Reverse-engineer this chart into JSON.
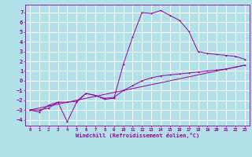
{
  "xlabel": "Windchill (Refroidissement éolien,°C)",
  "bg_color": "#b2e0e8",
  "grid_color": "#ffffff",
  "line_color": "#990099",
  "xlim": [
    -0.5,
    23.5
  ],
  "ylim": [
    -4.6,
    7.8
  ],
  "xticks": [
    0,
    1,
    2,
    3,
    4,
    5,
    6,
    7,
    8,
    9,
    10,
    11,
    12,
    13,
    14,
    15,
    16,
    17,
    18,
    19,
    20,
    21,
    22,
    23
  ],
  "yticks": [
    -4,
    -3,
    -2,
    -1,
    0,
    1,
    2,
    3,
    4,
    5,
    6,
    7
  ],
  "line1_x": [
    0,
    1,
    2,
    3,
    4,
    5,
    6,
    7,
    8,
    9,
    10,
    11,
    12,
    13,
    14,
    15,
    16,
    17,
    18,
    19,
    20,
    21,
    22,
    23
  ],
  "line1_y": [
    -3.0,
    -3.2,
    -2.5,
    -2.2,
    -4.2,
    -2.2,
    -1.3,
    -1.5,
    -1.9,
    -1.8,
    1.7,
    4.5,
    7.0,
    6.9,
    7.2,
    6.7,
    6.2,
    5.1,
    3.0,
    2.8,
    2.7,
    2.6,
    2.5,
    2.2
  ],
  "line2_x": [
    0,
    1,
    2,
    3,
    4,
    5,
    6,
    7,
    8,
    9,
    10,
    11,
    12,
    13,
    14,
    15,
    16,
    17,
    18,
    19,
    20,
    21,
    22,
    23
  ],
  "line2_y": [
    -3.0,
    -3.0,
    -2.8,
    -2.2,
    -2.2,
    -2.1,
    -1.3,
    -1.5,
    -1.8,
    -1.7,
    -1.0,
    -0.5,
    0.0,
    0.3,
    0.5,
    0.6,
    0.7,
    0.8,
    0.9,
    1.0,
    1.1,
    1.2,
    1.4,
    1.6
  ],
  "line3_x": [
    0,
    23
  ],
  "line3_y": [
    -3.0,
    1.6
  ]
}
